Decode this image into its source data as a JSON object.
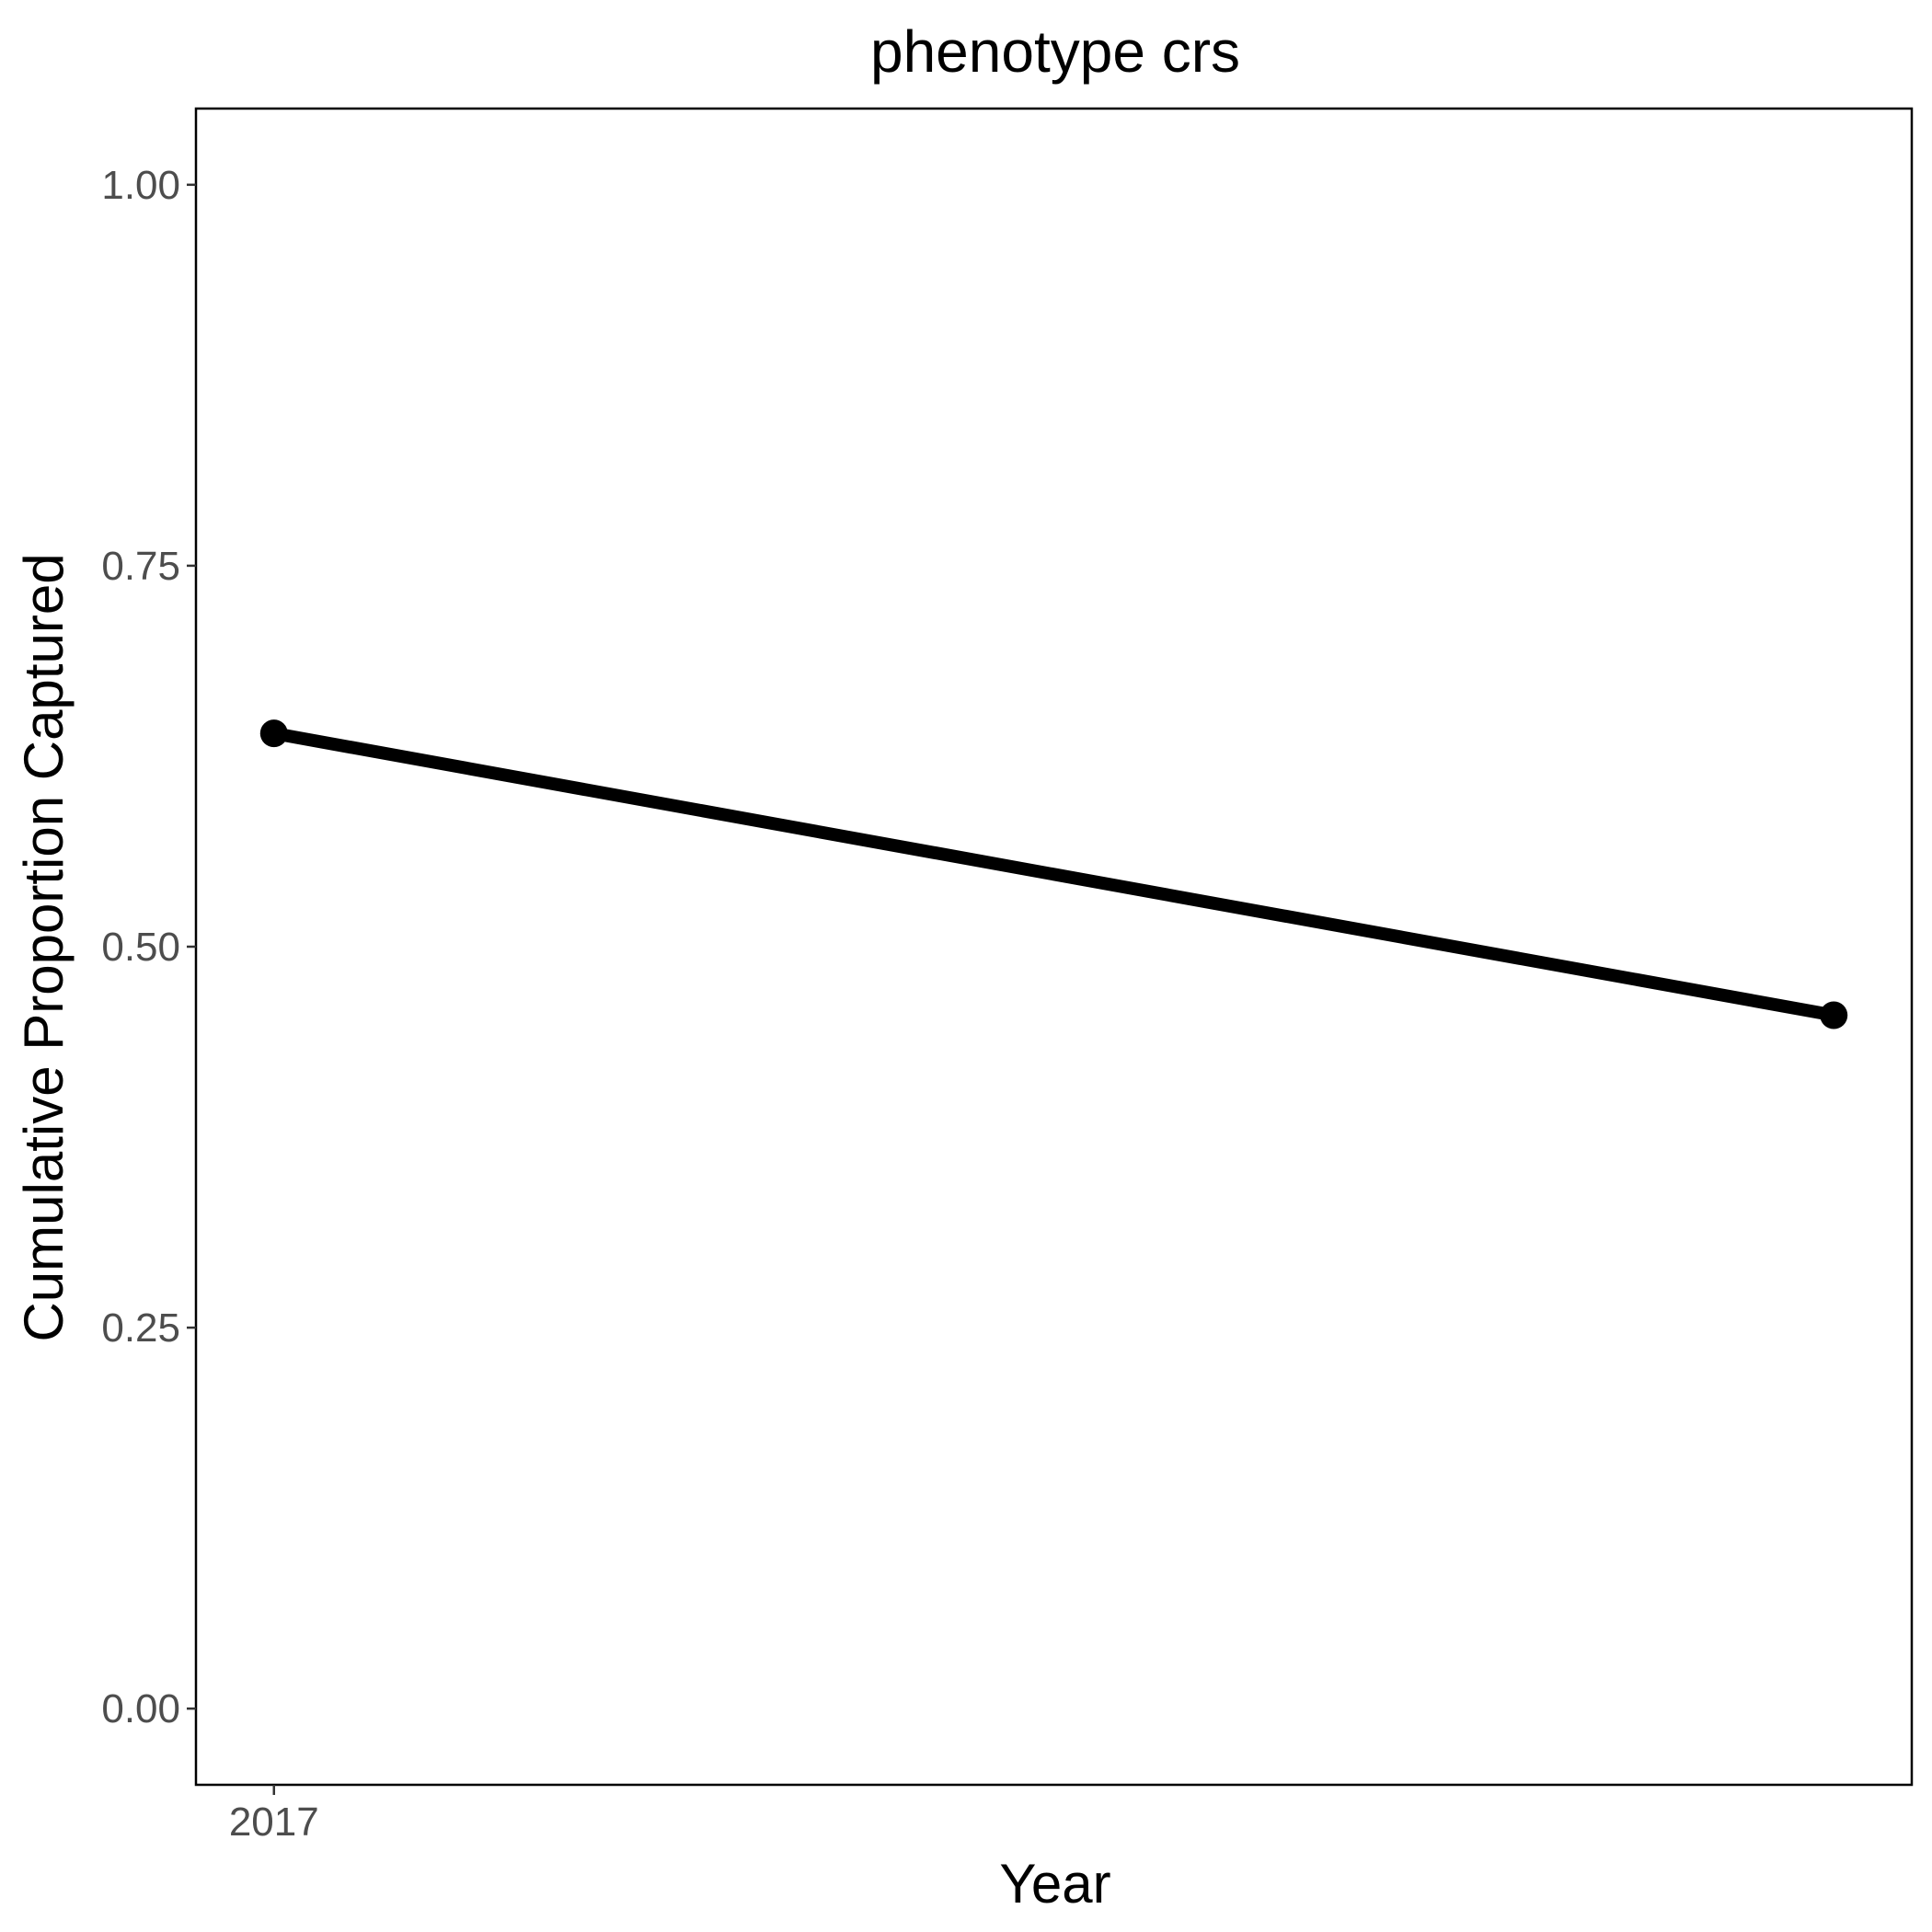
{
  "chart_data": {
    "type": "line",
    "title": "phenotype crs",
    "xlabel": "Year",
    "ylabel": "Cumulative Proportion Captured",
    "x_tick_labels": [
      "2017"
    ],
    "y_ticks": [
      0,
      0.25,
      0.5,
      0.75,
      1
    ],
    "y_tick_labels": [
      "0.00",
      "0.25",
      "0.50",
      "0.75",
      "1.00"
    ],
    "ylim": [
      -0.05,
      1.05
    ],
    "xlim": [
      2016.95,
      2018.05
    ],
    "grid": false,
    "series": [
      {
        "x": [
          2017,
          2018
        ],
        "values": [
          0.64,
          0.455
        ],
        "color": "#000000"
      }
    ]
  }
}
